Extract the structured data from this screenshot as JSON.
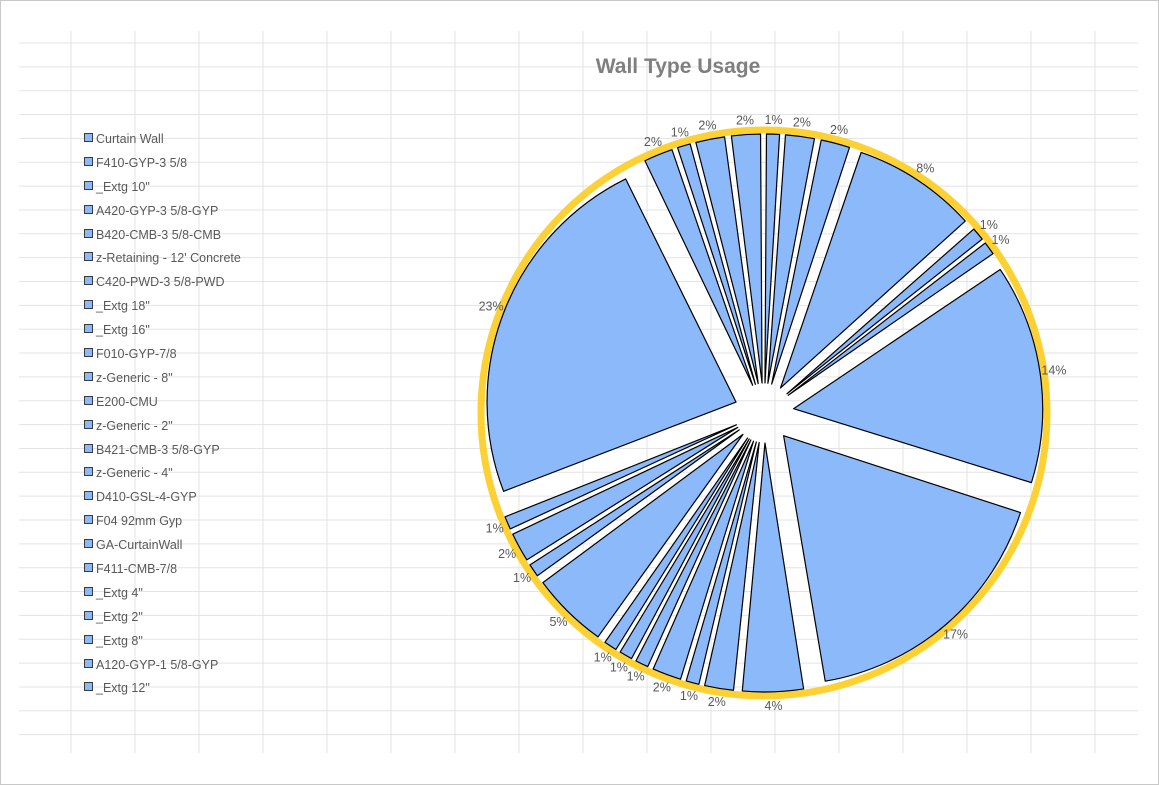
{
  "chart_data": {
    "type": "pie",
    "title": "Wall Type Usage",
    "legend_position": "left",
    "categories": [
      "Curtain Wall",
      "F410-GYP-3 5/8",
      "_Extg 10\"",
      "A420-GYP-3 5/8-GYP",
      "B420-CMB-3 5/8-CMB",
      "z-Retaining - 12' Concrete",
      "C420-PWD-3 5/8-PWD",
      "_Extg 18\"",
      "_Extg 16\"",
      "F010-GYP-7/8",
      "z-Generic - 8\"",
      "E200-CMU",
      "z-Generic - 2\"",
      "B421-CMB-3 5/8-GYP",
      "z-Generic - 4\"",
      "D410-GSL-4-GYP",
      "F04 92mm Gyp",
      "GA-CurtainWall",
      "F411-CMB-7/8",
      "_Extg 4\"",
      "_Extg 2\"",
      "_Extg 8\"",
      "A120-GYP-1 5/8-GYP",
      "_Extg 12\""
    ],
    "values": [
      1,
      2,
      2,
      8,
      1,
      1,
      14,
      17,
      4,
      2,
      1,
      2,
      1,
      1,
      1,
      5,
      1,
      2,
      1,
      23,
      2,
      1,
      2,
      2
    ],
    "value_labels": [
      "1%",
      "2%",
      "2%",
      "8%",
      "1%",
      "1%",
      "14%",
      "17%",
      "4%",
      "2%",
      "1%",
      "2%",
      "1%",
      "1%",
      "1%",
      "5%",
      "1%",
      "2%",
      "1%",
      "23%",
      "2%",
      "1%",
      "2%",
      "2%"
    ],
    "slice_order_note": "clockwise from top",
    "colors": {
      "slice_fill": "#8cb9fa",
      "slice_border": "#000000",
      "ring": "#fdd133",
      "title": "#7f7f7f",
      "text": "#595959",
      "grid": "#e3e3e3"
    },
    "grid": true
  }
}
